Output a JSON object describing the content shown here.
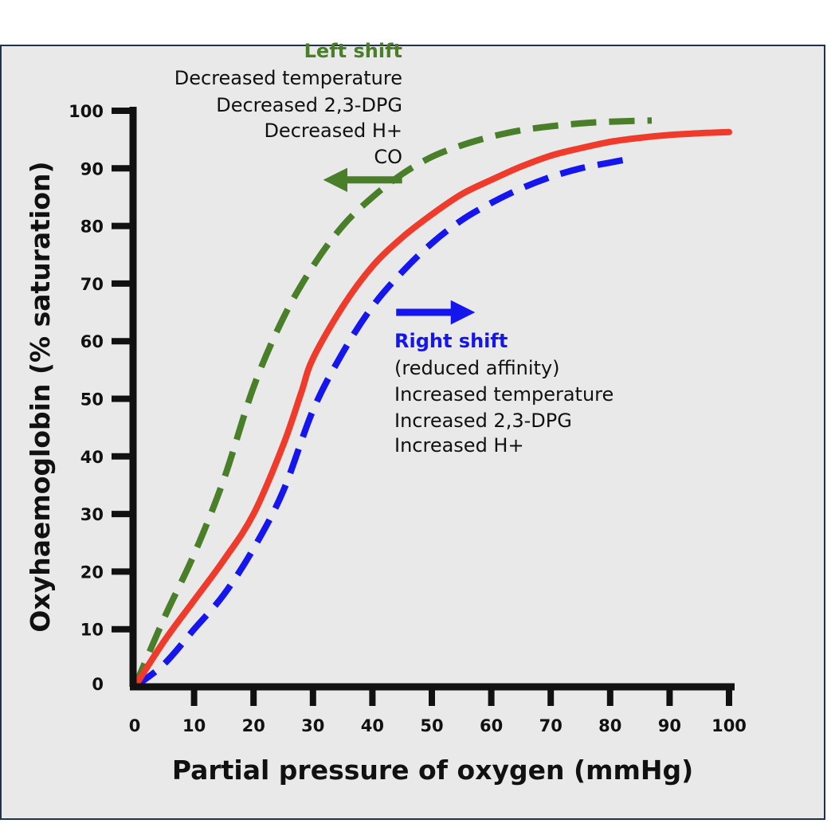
{
  "colors": {
    "frame_bg": "#e9e9e9",
    "frame_border": "#1f3350",
    "axis": "#111111",
    "normal_curve": "#ef3b2c",
    "left_shift": "#4a7f2a",
    "right_shift": "#1515ee"
  },
  "chart_data": {
    "type": "line",
    "xlabel": "Partial pressure of oxygen (mmHg)",
    "ylabel": "Oxyhaemoglobin (% saturation)",
    "xlim": [
      0,
      100
    ],
    "ylim": [
      0,
      100
    ],
    "x_ticks": [
      "0",
      "10",
      "20",
      "30",
      "40",
      "50",
      "60",
      "70",
      "80",
      "90",
      "100"
    ],
    "y_ticks": [
      "0",
      "10",
      "20",
      "30",
      "40",
      "50",
      "60",
      "70",
      "80",
      "90",
      "100"
    ],
    "grid": false,
    "legend": "none",
    "series": [
      {
        "key": "normal",
        "style": "solid",
        "color": "#ef3b2c",
        "x": [
          0,
          5,
          10,
          15,
          20,
          25,
          28,
          30,
          35,
          40,
          45,
          50,
          55,
          60,
          65,
          70,
          75,
          80,
          85,
          90,
          95,
          100
        ],
        "y": [
          0,
          8,
          15,
          22,
          30,
          42,
          51,
          57,
          66,
          73,
          78,
          82,
          85.5,
          88,
          90.3,
          92.2,
          93.5,
          94.6,
          95.3,
          95.8,
          96.1,
          96.3
        ]
      },
      {
        "key": "left_shift",
        "style": "dashed",
        "color": "#4a7f2a",
        "x": [
          0,
          5,
          10,
          15,
          20,
          25,
          30,
          35,
          40,
          45,
          50,
          55,
          60,
          65,
          70,
          75,
          80,
          87
        ],
        "y": [
          0,
          12,
          23,
          36,
          52,
          64,
          73,
          80,
          85,
          89,
          92,
          94,
          95.5,
          96.6,
          97.3,
          97.8,
          98.1,
          98.3
        ]
      },
      {
        "key": "right_shift",
        "style": "dashed",
        "color": "#1515ee",
        "x": [
          0,
          5,
          10,
          15,
          20,
          25,
          30,
          35,
          40,
          45,
          50,
          55,
          60,
          65,
          70,
          75,
          80,
          84
        ],
        "y": [
          0,
          4,
          10,
          16,
          24,
          34,
          48,
          58,
          66,
          72,
          77,
          81,
          84,
          86.5,
          88.5,
          90,
          91,
          91.8
        ]
      }
    ],
    "arrows": [
      {
        "key": "left_shift",
        "from": [
          45,
          88
        ],
        "to": [
          35,
          88
        ]
      },
      {
        "key": "right_shift",
        "from": [
          44,
          65
        ],
        "to": [
          54,
          65
        ]
      }
    ]
  },
  "left_note": {
    "heading": "Left shift",
    "lines": [
      "Decreased temperature",
      "Decreased 2,3-DPG",
      "Decreased H+",
      "CO"
    ]
  },
  "right_note": {
    "heading": "Right shift",
    "lines": [
      "(reduced affinity)",
      "Increased temperature",
      "Increased 2,3-DPG",
      "Increased H+"
    ]
  }
}
